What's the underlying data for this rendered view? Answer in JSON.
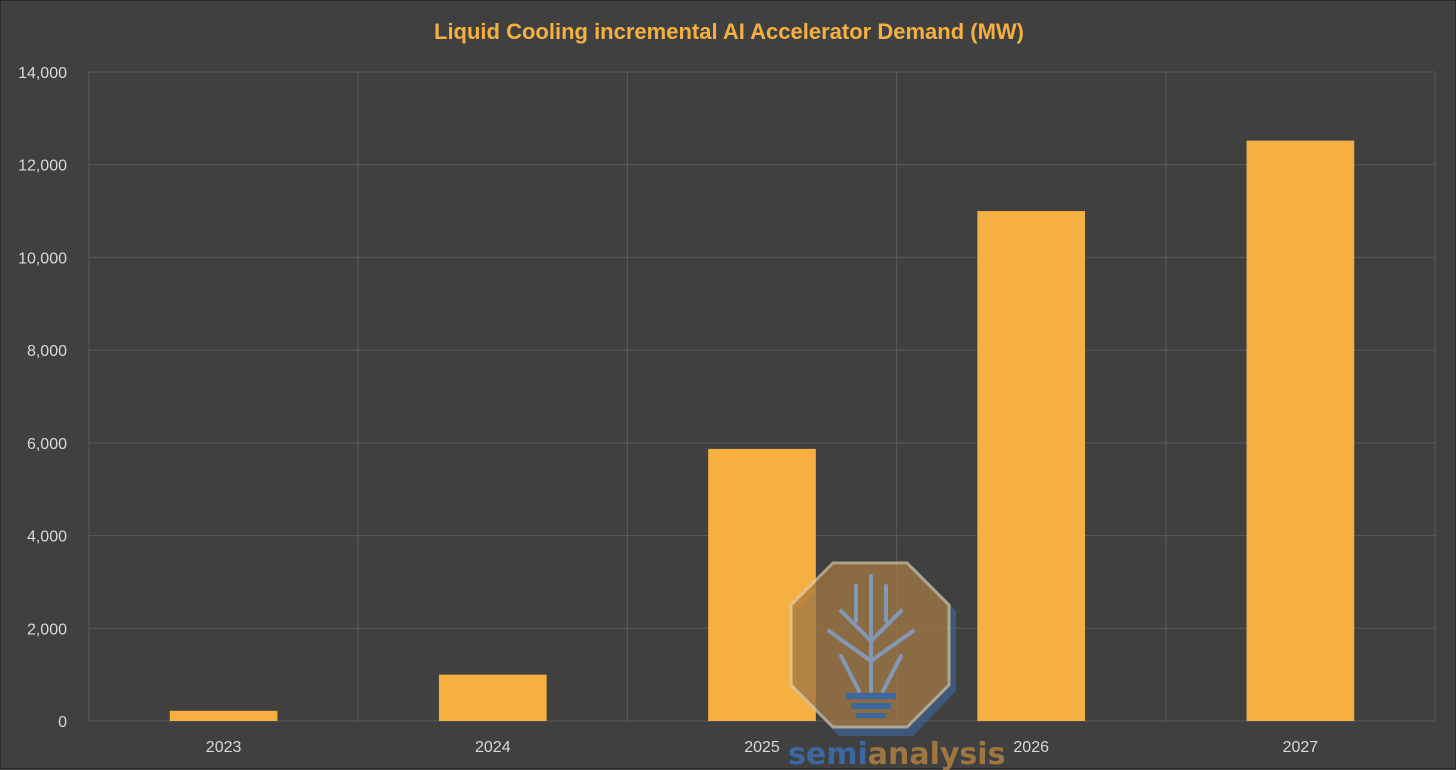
{
  "chart_data": {
    "type": "bar",
    "title": "Liquid Cooling incremental AI Accelerator Demand (MW)",
    "xlabel": "",
    "ylabel": "",
    "categories": [
      "2023",
      "2024",
      "2025",
      "2026",
      "2027"
    ],
    "values": [
      220,
      1000,
      5870,
      11000,
      12520
    ],
    "ylim": [
      0,
      14000
    ],
    "yticks": [
      0,
      2000,
      4000,
      6000,
      8000,
      10000,
      12000,
      14000
    ],
    "ytick_labels": [
      "0",
      "2,000",
      "4,000",
      "6,000",
      "8,000",
      "10,000",
      "12,000",
      "14,000"
    ],
    "grid": true,
    "legend": "none",
    "colors": {
      "bar": "#f5b041",
      "background": "#404040",
      "title": "#f5b041",
      "grid": "#5a5a5a",
      "tick": "#d9d9d9"
    }
  },
  "watermark": {
    "semi": "semi",
    "analysis": "analysis",
    "icon": "circuit-tree-logo-icon"
  }
}
